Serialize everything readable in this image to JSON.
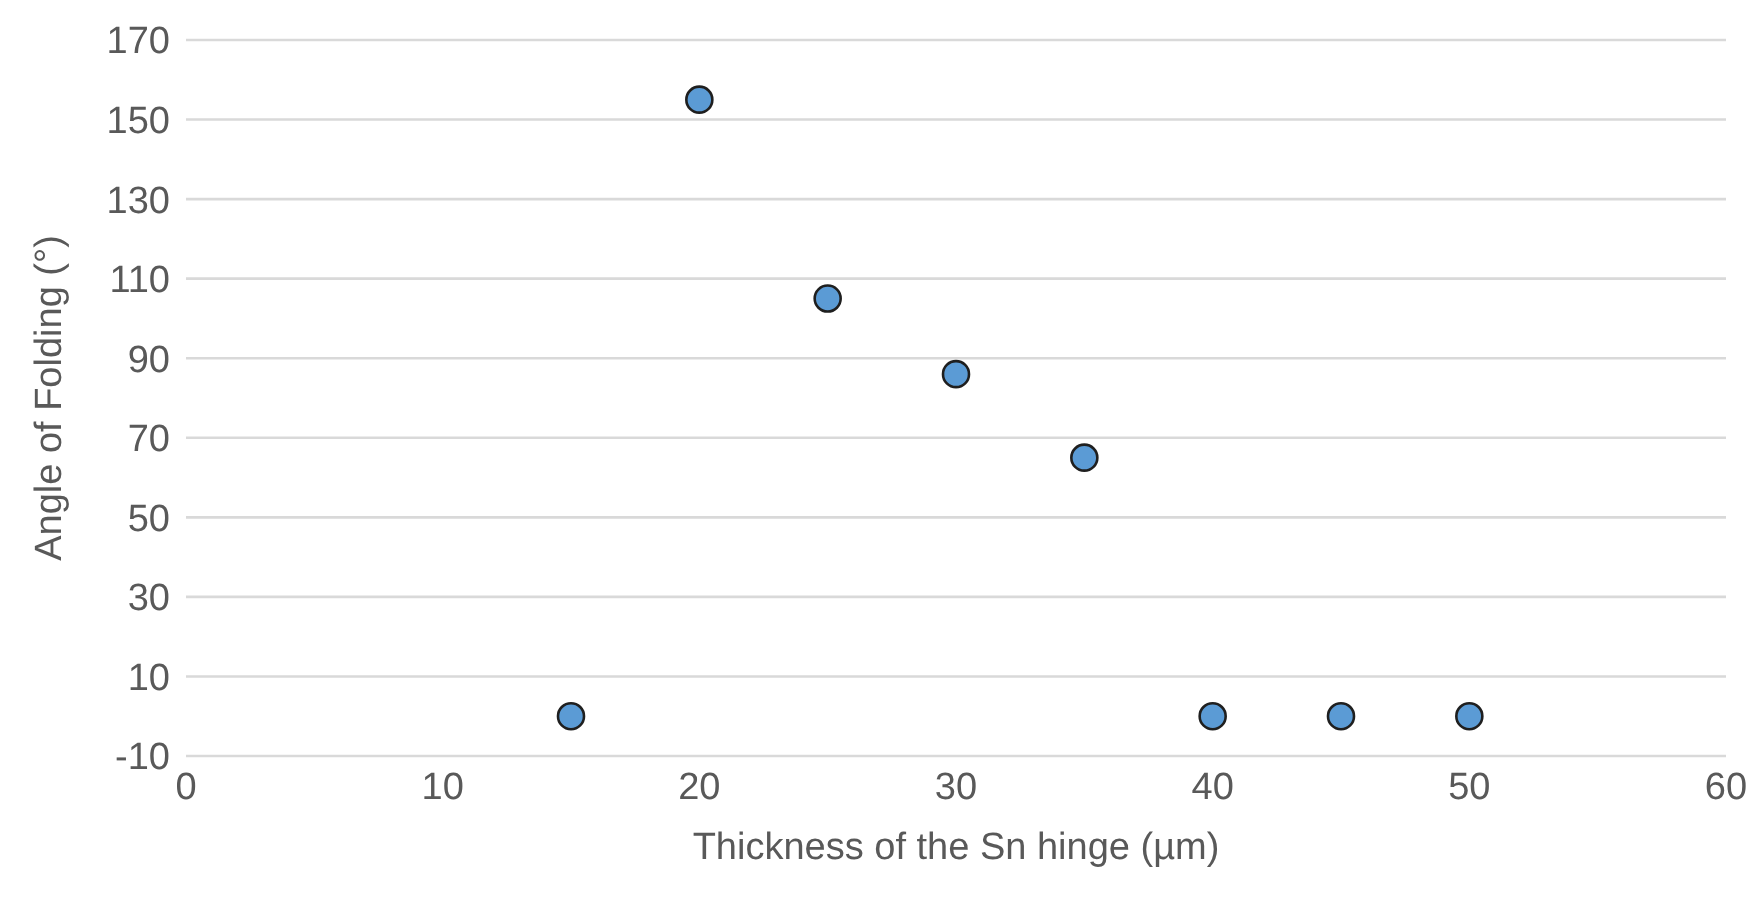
{
  "chart_data": {
    "type": "scatter",
    "xlabel": "Thickness of the Sn hinge (µm)",
    "ylabel": "Angle of Folding (°)",
    "x": [
      15,
      20,
      25,
      30,
      35,
      40,
      45,
      50
    ],
    "values": [
      0,
      155,
      105,
      86,
      65,
      0,
      0,
      0
    ],
    "color": "#5b9bd5",
    "marker": "circle",
    "xlim": [
      0,
      60
    ],
    "xticks": [
      0,
      10,
      20,
      30,
      40,
      50,
      60
    ],
    "ylim": [
      -10,
      170
    ],
    "yticks": [
      -10,
      10,
      30,
      50,
      70,
      90,
      110,
      130,
      150,
      170
    ],
    "grid": "y"
  }
}
